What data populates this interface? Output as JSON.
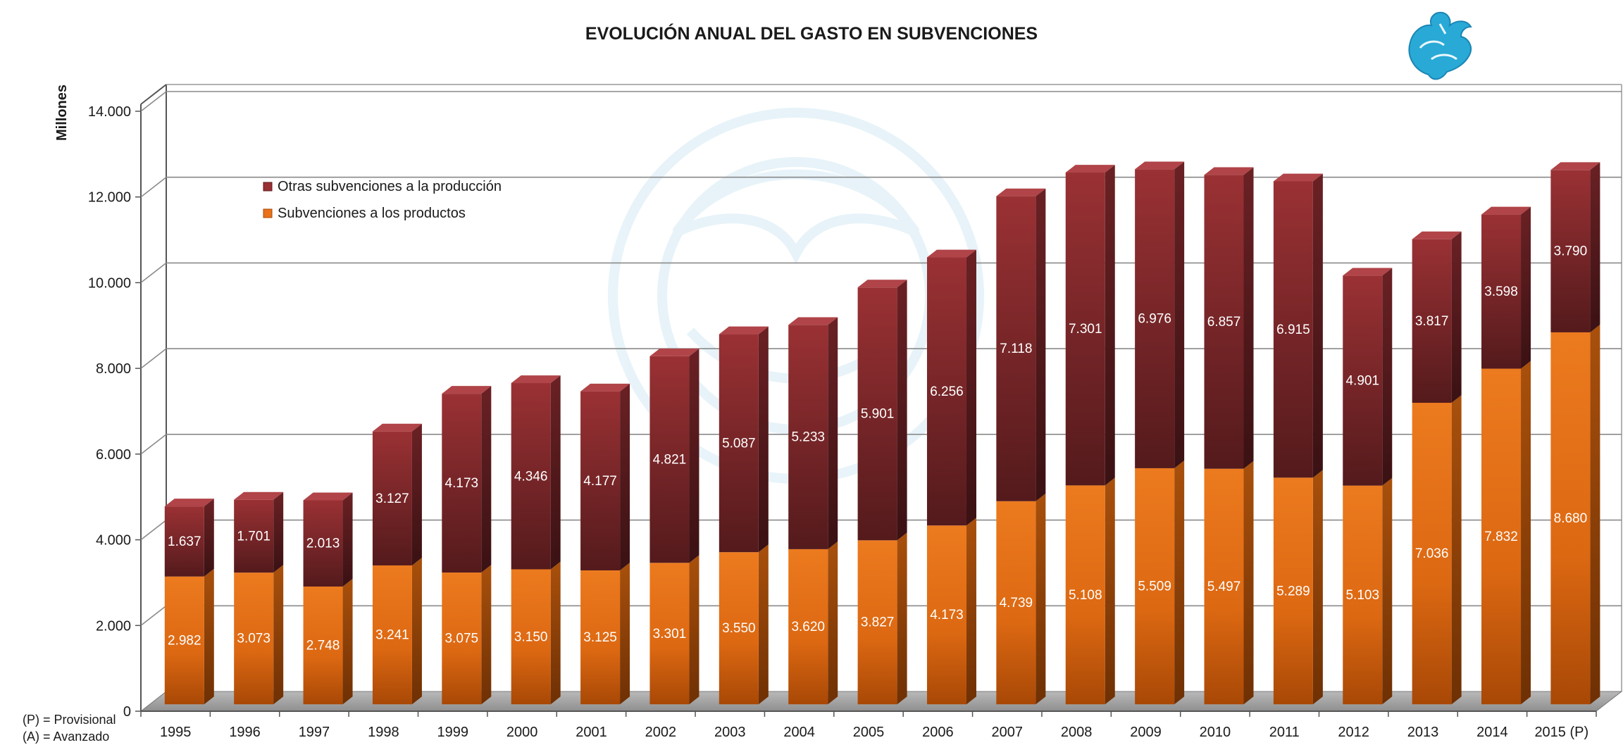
{
  "chart_data": {
    "type": "bar",
    "stacked": true,
    "three_d": true,
    "title": "EVOLUCIÓN ANUAL DEL GASTO EN SUBVENCIONES",
    "ylabel": "Millones",
    "xlabel": "",
    "ylim": [
      0,
      14000
    ],
    "ytick_labels": [
      "0",
      "2.000",
      "4.000",
      "6.000",
      "8.000",
      "10.000",
      "12.000",
      "14.000"
    ],
    "ytick_values": [
      0,
      2000,
      4000,
      6000,
      8000,
      10000,
      12000,
      14000
    ],
    "grid": true,
    "legend_position": "upper-left inside plot",
    "categories": [
      "1995",
      "1996",
      "1997",
      "1998",
      "1999",
      "2000",
      "2001",
      "2002",
      "2003",
      "2004",
      "2005",
      "2006",
      "2007",
      "2008",
      "2009",
      "2010",
      "2011",
      "2012",
      "2013",
      "2014",
      "2015 (P)"
    ],
    "series": [
      {
        "name": "Subvenciones a los productos",
        "color": "#e8711a",
        "values": [
          2982,
          3073,
          2748,
          3241,
          3075,
          3150,
          3125,
          3301,
          3550,
          3620,
          3827,
          4173,
          4739,
          5108,
          5509,
          5497,
          5289,
          5103,
          7036,
          7832,
          8680
        ],
        "labels": [
          "2.982",
          "3.073",
          "2.748",
          "3.241",
          "3.075",
          "3.150",
          "3.125",
          "3.301",
          "3.550",
          "3.620",
          "3.827",
          "4.173",
          "4.739",
          "5.108",
          "5.509",
          "5.497",
          "5.289",
          "5.103",
          "7.036",
          "7.832",
          "8.680"
        ]
      },
      {
        "name": "Otras subvenciones a la producción",
        "color": "#983034",
        "values": [
          1637,
          1701,
          2013,
          3127,
          4173,
          4346,
          4177,
          4821,
          5087,
          5233,
          5901,
          6256,
          7118,
          7301,
          6976,
          6857,
          6915,
          4901,
          3817,
          3598,
          3790
        ],
        "labels": [
          "1.637",
          "1.701",
          "2.013",
          "3.127",
          "4.173",
          "4.346",
          "4.177",
          "4.821",
          "5.087",
          "5.233",
          "5.901",
          "6.256",
          "7.118",
          "7.301",
          "6.976",
          "6.857",
          "6.915",
          "4.901",
          "3.817",
          "3.598",
          "3.790"
        ]
      }
    ],
    "legend_order": [
      "Otras subvenciones a la producción",
      "Subvenciones a los productos"
    ],
    "notes": [
      "(P) = Provisional",
      "(A) = Avanzado"
    ]
  },
  "logo": {
    "name": "griffin-logo",
    "color": "#29a9d6"
  }
}
